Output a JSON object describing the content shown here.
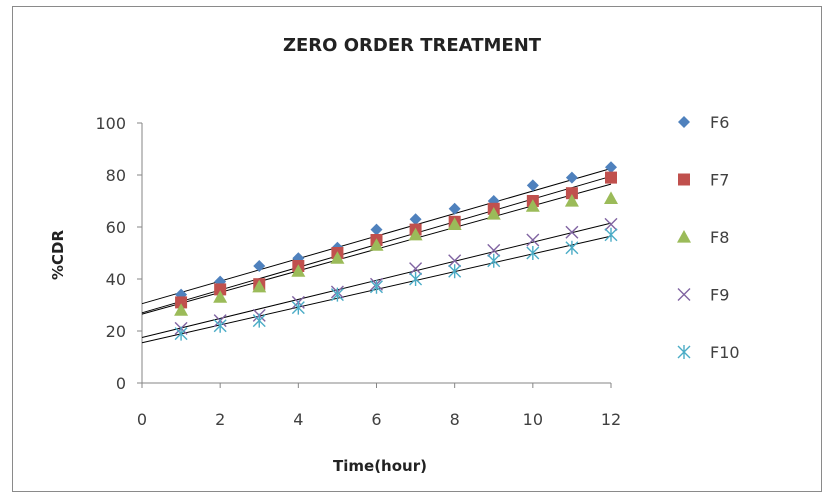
{
  "chart_data": {
    "type": "scatter",
    "title": "ZERO ORDER TREATMENT",
    "xlabel": "Time(hour)",
    "ylabel": "%CDR",
    "xlim": [
      0,
      12
    ],
    "ylim": [
      0,
      100
    ],
    "xticks": [
      "0",
      "2",
      "4",
      "6",
      "8",
      "10",
      "12"
    ],
    "yticks": [
      "0",
      "20",
      "40",
      "60",
      "80",
      "100"
    ],
    "grid": false,
    "legend_position": "right",
    "trendlines": true,
    "x": [
      1,
      2,
      3,
      4,
      5,
      6,
      7,
      8,
      9,
      10,
      11,
      12
    ],
    "series": [
      {
        "name": "F6",
        "marker": "diamond",
        "color": "#4f81bd",
        "values": [
          34,
          39,
          45,
          48,
          52,
          59,
          63,
          67,
          70,
          76,
          79,
          83
        ],
        "trend": [
          30.5,
          82.5
        ]
      },
      {
        "name": "F7",
        "marker": "square",
        "color": "#c0504d",
        "values": [
          31,
          36,
          38,
          45,
          50,
          55,
          59,
          62,
          67,
          70,
          73,
          79
        ],
        "trend": [
          27,
          79.5
        ]
      },
      {
        "name": "F8",
        "marker": "triangle",
        "color": "#9bbb59",
        "values": [
          28,
          33,
          37,
          43,
          48,
          53,
          57,
          61,
          65,
          68,
          70,
          71
        ],
        "trend": [
          26.5,
          76.5
        ]
      },
      {
        "name": "F9",
        "marker": "x",
        "color": "#8064a2",
        "values": [
          21,
          24,
          26,
          31,
          35,
          38,
          44,
          47,
          51,
          55,
          58,
          61
        ],
        "trend": [
          17.5,
          61.5
        ]
      },
      {
        "name": "F10",
        "marker": "star",
        "color": "#4bacc6",
        "values": [
          19,
          22,
          24,
          29,
          34,
          37,
          40,
          43,
          47,
          50,
          52,
          57
        ],
        "trend": [
          15.5,
          56.5
        ]
      }
    ]
  }
}
